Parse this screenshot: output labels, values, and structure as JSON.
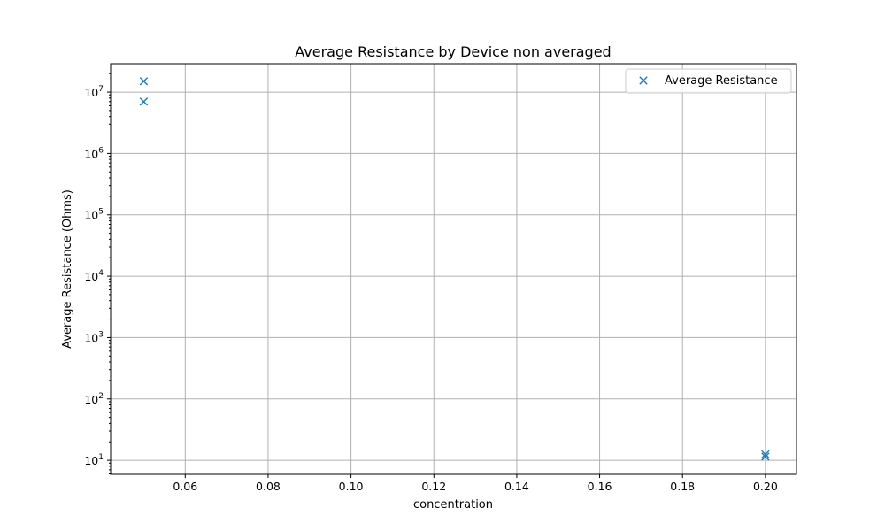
{
  "chart_data": {
    "type": "scatter",
    "title": "Average Resistance by Device  non averaged",
    "xlabel": "concentration",
    "ylabel": "Average Resistance (Ohms)",
    "x_scale": "linear",
    "y_scale": "log",
    "xlim": [
      0.042,
      0.2075
    ],
    "ylim": [
      5.9,
      29000000
    ],
    "x_ticks": [
      0.06,
      0.08,
      0.1,
      0.12,
      0.14,
      0.16,
      0.18,
      0.2
    ],
    "x_tick_labels": [
      "0.06",
      "0.08",
      "0.10",
      "0.12",
      "0.14",
      "0.16",
      "0.18",
      "0.20"
    ],
    "y_ticks": [
      {
        "value": 10,
        "base": "10",
        "exp": "1"
      },
      {
        "value": 100,
        "base": "10",
        "exp": "2"
      },
      {
        "value": 1000,
        "base": "10",
        "exp": "3"
      },
      {
        "value": 10000,
        "base": "10",
        "exp": "4"
      },
      {
        "value": 100000,
        "base": "10",
        "exp": "5"
      },
      {
        "value": 1000000,
        "base": "10",
        "exp": "6"
      },
      {
        "value": 10000000,
        "base": "10",
        "exp": "7"
      }
    ],
    "grid": true,
    "legend_position": "top-right",
    "series": [
      {
        "name": "Average Resistance",
        "marker": "x",
        "color": "#1f77b4",
        "points": [
          {
            "x": 0.05,
            "y": 15000000
          },
          {
            "x": 0.05,
            "y": 7000000
          },
          {
            "x": 0.2,
            "y": 12.5
          },
          {
            "x": 0.2,
            "y": 11.5
          }
        ]
      }
    ]
  }
}
